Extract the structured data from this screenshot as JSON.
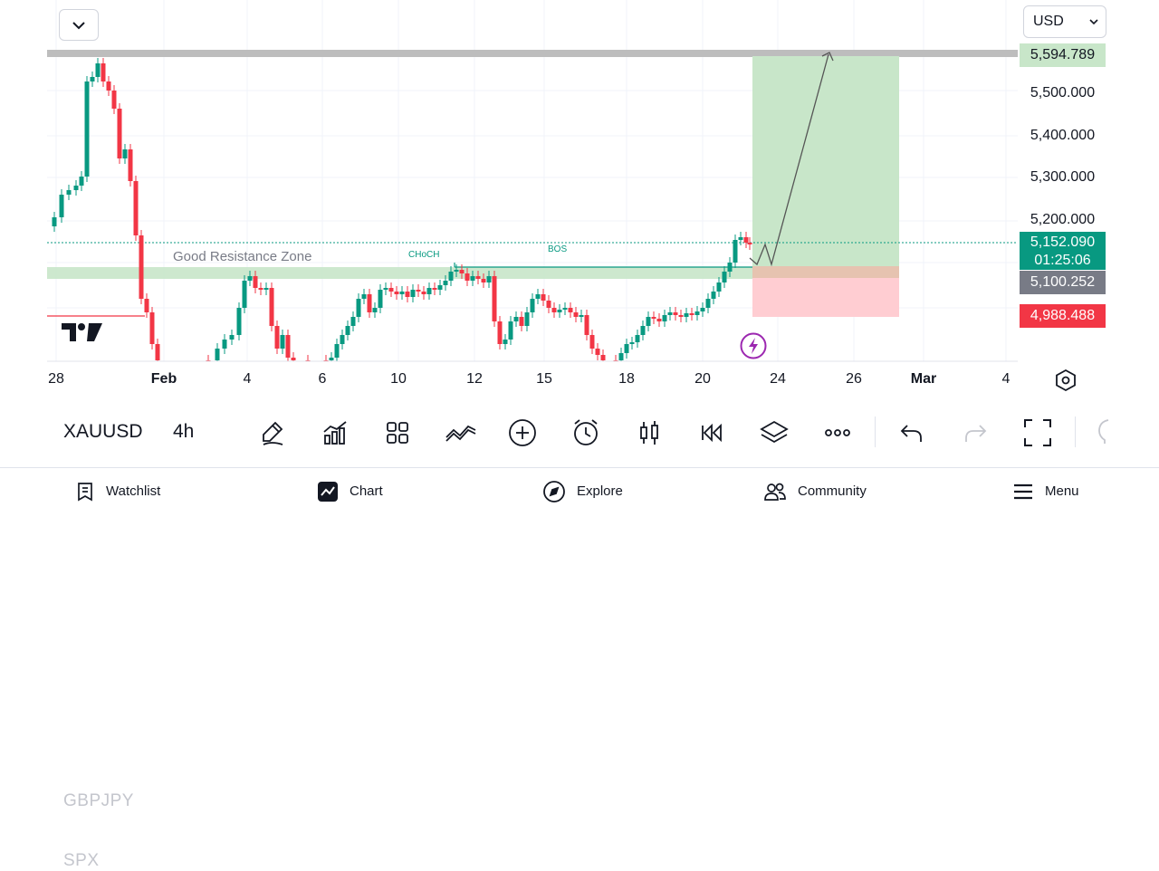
{
  "chart": {
    "currency": "USD",
    "price_axis": [
      "5,500.000",
      "5,400.000",
      "5,300.000",
      "5,200.000"
    ],
    "target_price": "5,594.789",
    "current_price": "5,152.090",
    "countdown": "01:25:06",
    "entry_price": "5,100.252",
    "stop_price": "4,988.488",
    "date_axis": [
      "28",
      "Feb",
      "4",
      "6",
      "10",
      "12",
      "15",
      "18",
      "20",
      "24",
      "26",
      "Mar",
      "4"
    ],
    "annotations": {
      "zone": "Good Resistance Zone",
      "choch": "CHoCH",
      "bos": "BOS"
    },
    "colors": {
      "bull": "#089981",
      "bear": "#f23645",
      "target_bg": "#c8e6c9",
      "stop_bg": "#ffcdd2",
      "current_bg": "#089981",
      "entry_bg": "#787b86",
      "stop_label_bg": "#f23645",
      "target_label_bg": "#c8e6c9"
    }
  },
  "toolbar": {
    "symbols_ghost": [
      "GBPJPY",
      "SPX"
    ],
    "symbol": "XAUUSD",
    "interval": "4h",
    "tools": [
      "pencil-icon",
      "indicators-icon",
      "layout-grid-icon",
      "compare-icon",
      "add-icon",
      "alert-icon",
      "candle-type-icon",
      "replay-icon",
      "layers-icon",
      "more-icon",
      "undo-icon",
      "redo-icon",
      "fullscreen-icon"
    ]
  },
  "nav": {
    "items": [
      {
        "label": "Watchlist",
        "icon": "watchlist-icon"
      },
      {
        "label": "Chart",
        "icon": "chart-icon"
      },
      {
        "label": "Explore",
        "icon": "compass-icon"
      },
      {
        "label": "Community",
        "icon": "community-icon"
      },
      {
        "label": "Menu",
        "icon": "menu-icon"
      }
    ]
  }
}
